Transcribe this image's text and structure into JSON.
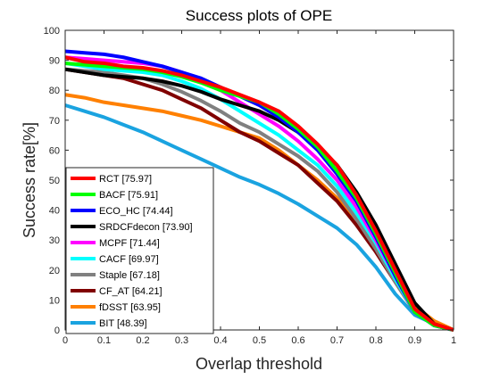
{
  "chart_data": {
    "type": "line",
    "title": "Success plots of OPE",
    "xlabel": "Overlap threshold",
    "ylabel": "Success rate[%]",
    "xlim": [
      0,
      1
    ],
    "ylim": [
      0,
      100
    ],
    "xticks": [
      0,
      0.1,
      0.2,
      0.3,
      0.4,
      0.5,
      0.6,
      0.7,
      0.8,
      0.9,
      1
    ],
    "xtick_labels": [
      "0",
      "0.1",
      "0.2",
      "0.3",
      "0.4",
      "0.5",
      "0.6",
      "0.7",
      "0.8",
      "0.9",
      "1"
    ],
    "yticks": [
      0,
      10,
      20,
      30,
      40,
      50,
      60,
      70,
      80,
      90,
      100
    ],
    "ytick_labels": [
      "0",
      "10",
      "20",
      "30",
      "40",
      "50",
      "60",
      "70",
      "80",
      "90",
      "100"
    ],
    "grid": false,
    "legend_position": "bottom-left",
    "x": [
      0,
      0.05,
      0.1,
      0.15,
      0.2,
      0.25,
      0.3,
      0.35,
      0.4,
      0.45,
      0.5,
      0.55,
      0.6,
      0.65,
      0.7,
      0.75,
      0.8,
      0.85,
      0.9,
      0.95,
      1
    ],
    "series": [
      {
        "name": "RCT [75.97]",
        "color": "#ff0000",
        "values": [
          91,
          89.5,
          89,
          88,
          87.5,
          86.5,
          85,
          83,
          81,
          78.5,
          76,
          73,
          68,
          62,
          55,
          45,
          33,
          20,
          7,
          2,
          0
        ]
      },
      {
        "name": "BACF [75.91]",
        "color": "#00ff00",
        "values": [
          89,
          88.5,
          88,
          87.5,
          87,
          86,
          84.5,
          82.5,
          80,
          78,
          76,
          72,
          67,
          61,
          53,
          44,
          32,
          19,
          6,
          1.5,
          0
        ]
      },
      {
        "name": "ECO_HC [74.44]",
        "color": "#0000ff",
        "values": [
          93,
          92.5,
          92,
          91,
          89.5,
          88,
          86,
          84,
          81,
          78,
          75,
          71,
          66,
          60,
          52,
          43,
          31,
          18,
          6,
          1.5,
          0
        ]
      },
      {
        "name": "SRDCFdecon [73.90]",
        "color": "#000000",
        "values": [
          87,
          86,
          85,
          84.5,
          84,
          83,
          81.5,
          79.5,
          77,
          75,
          73,
          70,
          66,
          61,
          55,
          46,
          35,
          22,
          9,
          2,
          0
        ]
      },
      {
        "name": "MCPF [71.44]",
        "color": "#ff00ff",
        "values": [
          91,
          90.5,
          90,
          89.5,
          89,
          88,
          86,
          83.5,
          80,
          76,
          72,
          68,
          63,
          57,
          50,
          41,
          30,
          18,
          6,
          1.5,
          0
        ]
      },
      {
        "name": "CACF [69.97]",
        "color": "#00ffff",
        "values": [
          89,
          88,
          87,
          86.5,
          86,
          85,
          83,
          80.5,
          77,
          73,
          69,
          65,
          60,
          55,
          48,
          39,
          29,
          17,
          6,
          1.5,
          0
        ]
      },
      {
        "name": "Staple [67.18]",
        "color": "#808080",
        "values": [
          87,
          86.5,
          86,
          85,
          84,
          82,
          79.5,
          76.5,
          73,
          69,
          66,
          62,
          58,
          53,
          46,
          37,
          27,
          16,
          6,
          1.5,
          0
        ]
      },
      {
        "name": "CF_AT [64.21]",
        "color": "#800000",
        "values": [
          87,
          86,
          85,
          84,
          82,
          80,
          77,
          74,
          70,
          66,
          63,
          59,
          55,
          49,
          43,
          35,
          26,
          16,
          6,
          1.5,
          0
        ]
      },
      {
        "name": "fDSST [63.95]",
        "color": "#ff8000",
        "values": [
          78.5,
          77.5,
          76,
          75,
          74,
          73,
          71.5,
          70,
          68,
          66,
          64,
          60,
          55,
          50,
          44,
          37,
          28,
          18,
          8,
          3,
          0
        ]
      },
      {
        "name": "BIT [48.39]",
        "color": "#1aa3e0",
        "values": [
          75,
          73,
          71,
          68.5,
          66,
          63,
          60,
          57,
          54,
          51,
          48.5,
          45.5,
          42,
          38,
          34,
          28.5,
          21,
          12,
          5,
          2,
          0
        ]
      }
    ]
  }
}
